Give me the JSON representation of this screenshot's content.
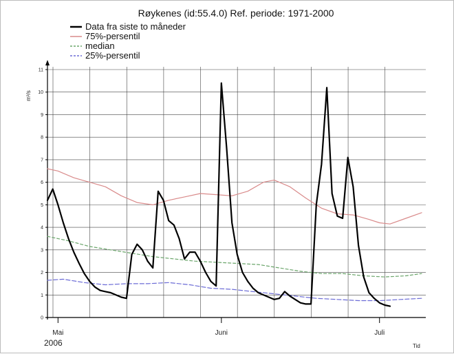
{
  "chart_data": {
    "type": "line",
    "title": "Røykenes (id:55.4.0) Ref. periode: 1971-2000",
    "ylabel": "m³/s",
    "xlabel": "Tid",
    "ylim": [
      0,
      11
    ],
    "yticks": [
      0,
      1,
      2,
      3,
      4,
      5,
      6,
      7,
      8,
      9,
      10,
      11
    ],
    "xlim": [
      "2006-04-29",
      "2006-07-09"
    ],
    "month_labels": [
      {
        "label": "Mai",
        "date": "2006-05-01"
      },
      {
        "label": "Juni",
        "date": "2006-06-01"
      },
      {
        "label": "Juli",
        "date": "2006-07-01"
      }
    ],
    "year_label": "2006",
    "grid": true,
    "legend_position": "top",
    "series": [
      {
        "name": "Data fra siste to måneder",
        "color": "#000000",
        "width": 2.2,
        "dash": "",
        "points": [
          [
            "2006-04-29",
            5.2
          ],
          [
            "2006-04-30",
            5.7
          ],
          [
            "2006-05-01",
            5.0
          ],
          [
            "2006-05-02",
            4.2
          ],
          [
            "2006-05-03",
            3.5
          ],
          [
            "2006-05-04",
            2.9
          ],
          [
            "2006-05-05",
            2.4
          ],
          [
            "2006-05-06",
            1.95
          ],
          [
            "2006-05-07",
            1.6
          ],
          [
            "2006-05-08",
            1.35
          ],
          [
            "2006-05-09",
            1.2
          ],
          [
            "2006-05-10",
            1.15
          ],
          [
            "2006-05-11",
            1.1
          ],
          [
            "2006-05-12",
            1.0
          ],
          [
            "2006-05-13",
            0.9
          ],
          [
            "2006-05-14",
            0.85
          ],
          [
            "2006-05-15",
            2.8
          ],
          [
            "2006-05-16",
            3.25
          ],
          [
            "2006-05-17",
            3.0
          ],
          [
            "2006-05-18",
            2.5
          ],
          [
            "2006-05-19",
            2.2
          ],
          [
            "2006-05-20",
            5.6
          ],
          [
            "2006-05-21",
            5.2
          ],
          [
            "2006-05-22",
            4.3
          ],
          [
            "2006-05-23",
            4.1
          ],
          [
            "2006-05-24",
            3.5
          ],
          [
            "2006-05-25",
            2.6
          ],
          [
            "2006-05-26",
            2.9
          ],
          [
            "2006-05-27",
            2.9
          ],
          [
            "2006-05-28",
            2.5
          ],
          [
            "2006-05-29",
            2.0
          ],
          [
            "2006-05-30",
            1.6
          ],
          [
            "2006-05-31",
            1.4
          ],
          [
            "2006-06-01",
            10.4
          ],
          [
            "2006-06-02",
            7.5
          ],
          [
            "2006-06-03",
            4.2
          ],
          [
            "2006-06-04",
            2.8
          ],
          [
            "2006-06-05",
            2.0
          ],
          [
            "2006-06-06",
            1.6
          ],
          [
            "2006-06-07",
            1.3
          ],
          [
            "2006-06-08",
            1.1
          ],
          [
            "2006-06-09",
            1.0
          ],
          [
            "2006-06-10",
            0.9
          ],
          [
            "2006-06-11",
            0.8
          ],
          [
            "2006-06-12",
            0.85
          ],
          [
            "2006-06-13",
            1.15
          ],
          [
            "2006-06-14",
            0.95
          ],
          [
            "2006-06-15",
            0.8
          ],
          [
            "2006-06-16",
            0.65
          ],
          [
            "2006-06-17",
            0.6
          ],
          [
            "2006-06-18",
            0.6
          ],
          [
            "2006-06-19",
            5.0
          ],
          [
            "2006-06-20",
            6.8
          ],
          [
            "2006-06-21",
            10.2
          ],
          [
            "2006-06-22",
            5.5
          ],
          [
            "2006-06-23",
            4.5
          ],
          [
            "2006-06-24",
            4.4
          ],
          [
            "2006-06-25",
            7.1
          ],
          [
            "2006-06-26",
            5.8
          ],
          [
            "2006-06-27",
            3.2
          ],
          [
            "2006-06-28",
            1.8
          ],
          [
            "2006-06-29",
            1.1
          ],
          [
            "2006-06-30",
            0.85
          ],
          [
            "2006-07-01",
            0.65
          ],
          [
            "2006-07-02",
            0.55
          ],
          [
            "2006-07-03",
            0.5
          ]
        ]
      },
      {
        "name": "75%-persentil",
        "color": "#d98a8a",
        "width": 1.2,
        "dash": "",
        "points": [
          [
            "2006-04-29",
            6.6
          ],
          [
            "2006-05-01",
            6.5
          ],
          [
            "2006-05-04",
            6.2
          ],
          [
            "2006-05-07",
            6.0
          ],
          [
            "2006-05-10",
            5.8
          ],
          [
            "2006-05-13",
            5.4
          ],
          [
            "2006-05-16",
            5.1
          ],
          [
            "2006-05-19",
            5.0
          ],
          [
            "2006-05-22",
            5.2
          ],
          [
            "2006-05-25",
            5.35
          ],
          [
            "2006-05-28",
            5.5
          ],
          [
            "2006-05-31",
            5.45
          ],
          [
            "2006-06-03",
            5.4
          ],
          [
            "2006-06-06",
            5.6
          ],
          [
            "2006-06-09",
            6.0
          ],
          [
            "2006-06-11",
            6.1
          ],
          [
            "2006-06-14",
            5.8
          ],
          [
            "2006-06-17",
            5.3
          ],
          [
            "2006-06-20",
            4.85
          ],
          [
            "2006-06-23",
            4.6
          ],
          [
            "2006-06-26",
            4.55
          ],
          [
            "2006-06-29",
            4.35
          ],
          [
            "2006-07-01",
            4.2
          ],
          [
            "2006-07-03",
            4.15
          ],
          [
            "2006-07-06",
            4.4
          ],
          [
            "2006-07-09",
            4.65
          ]
        ]
      },
      {
        "name": "median",
        "color": "#6aa56a",
        "width": 1.2,
        "dash": "4,3",
        "points": [
          [
            "2006-04-29",
            3.6
          ],
          [
            "2006-05-03",
            3.4
          ],
          [
            "2006-05-07",
            3.15
          ],
          [
            "2006-05-11",
            3.0
          ],
          [
            "2006-05-15",
            2.85
          ],
          [
            "2006-05-19",
            2.7
          ],
          [
            "2006-05-23",
            2.6
          ],
          [
            "2006-05-27",
            2.5
          ],
          [
            "2006-05-31",
            2.45
          ],
          [
            "2006-06-04",
            2.4
          ],
          [
            "2006-06-08",
            2.35
          ],
          [
            "2006-06-12",
            2.2
          ],
          [
            "2006-06-16",
            2.05
          ],
          [
            "2006-06-20",
            1.95
          ],
          [
            "2006-06-24",
            1.95
          ],
          [
            "2006-06-28",
            1.85
          ],
          [
            "2006-07-02",
            1.8
          ],
          [
            "2006-07-06",
            1.85
          ],
          [
            "2006-07-09",
            1.95
          ]
        ]
      },
      {
        "name": "25%-persentil",
        "color": "#6b6bd6",
        "width": 1.2,
        "dash": "6,3",
        "points": [
          [
            "2006-04-29",
            1.65
          ],
          [
            "2006-05-02",
            1.7
          ],
          [
            "2006-05-06",
            1.55
          ],
          [
            "2006-05-10",
            1.45
          ],
          [
            "2006-05-14",
            1.5
          ],
          [
            "2006-05-18",
            1.5
          ],
          [
            "2006-05-22",
            1.55
          ],
          [
            "2006-05-26",
            1.45
          ],
          [
            "2006-05-30",
            1.3
          ],
          [
            "2006-06-03",
            1.25
          ],
          [
            "2006-06-07",
            1.15
          ],
          [
            "2006-06-11",
            1.05
          ],
          [
            "2006-06-15",
            0.95
          ],
          [
            "2006-06-19",
            0.85
          ],
          [
            "2006-06-23",
            0.8
          ],
          [
            "2006-06-27",
            0.75
          ],
          [
            "2006-07-01",
            0.75
          ],
          [
            "2006-07-05",
            0.8
          ],
          [
            "2006-07-09",
            0.85
          ]
        ]
      }
    ]
  }
}
